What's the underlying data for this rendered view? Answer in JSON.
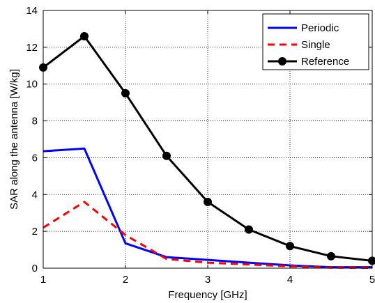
{
  "chart_data": {
    "type": "line",
    "title": "",
    "xlabel": "Frequency [GHz]",
    "ylabel": "SAR along the antenna [W/kg]",
    "xlim": [
      1,
      5
    ],
    "ylim": [
      0,
      14
    ],
    "xticks": [
      "1",
      "2",
      "3",
      "4",
      "5"
    ],
    "yticks": [
      "0",
      "2",
      "4",
      "6",
      "8",
      "10",
      "12",
      "14"
    ],
    "grid": true,
    "legend_position": "top-right",
    "series": [
      {
        "name": "Periodic",
        "color": "#0000ff",
        "style": "solid",
        "marker": "none",
        "x": [
          1,
          1.5,
          2,
          2.5,
          3,
          3.5,
          4,
          4.5,
          5
        ],
        "y": [
          6.35,
          6.5,
          1.35,
          0.6,
          0.45,
          0.3,
          0.15,
          0.05,
          0.05
        ]
      },
      {
        "name": "Single",
        "color": "#ff0000",
        "style": "dashed",
        "marker": "none",
        "x": [
          1,
          1.5,
          2,
          2.5,
          3,
          3.5,
          4,
          4.5,
          5
        ],
        "y": [
          2.2,
          3.6,
          1.8,
          0.5,
          0.3,
          0.2,
          0.1,
          0.03,
          0.02
        ]
      },
      {
        "name": "Reference",
        "color": "#000000",
        "style": "solid",
        "marker": "circle",
        "x": [
          1,
          1.5,
          2,
          2.5,
          3,
          3.5,
          4,
          4.5,
          5
        ],
        "y": [
          10.9,
          12.6,
          9.5,
          6.1,
          3.6,
          2.1,
          1.2,
          0.65,
          0.4
        ]
      }
    ]
  }
}
